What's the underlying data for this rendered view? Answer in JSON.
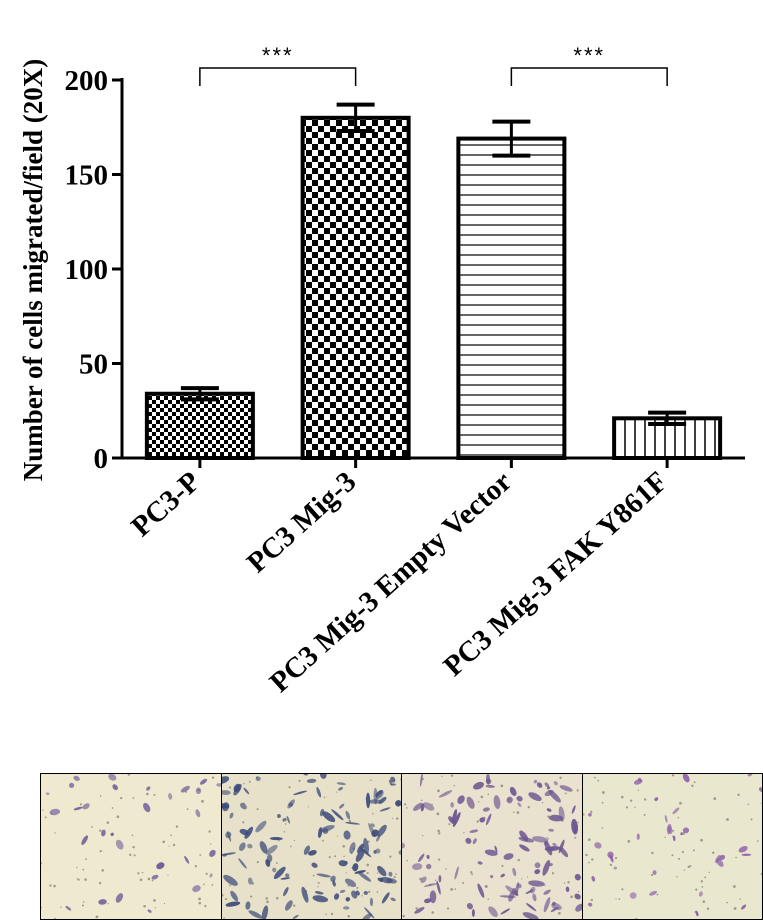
{
  "chart_data": {
    "type": "bar",
    "title": "",
    "xlabel": "",
    "ylabel": "Number of cells migrated/field (20X)",
    "ylim": [
      0,
      200
    ],
    "yticks": [
      "0",
      "50",
      "100",
      "150",
      "200"
    ],
    "categories": [
      "PC3-P",
      "PC3 Mig-3",
      "PC3 Mig-3 Empty Vector",
      "PC3 Mig-3 FAK Y861F"
    ],
    "values": [
      34,
      180,
      169,
      21
    ],
    "errors": [
      3,
      7,
      9,
      3
    ],
    "patterns": [
      "small-checker",
      "large-checker",
      "horizontal-lines",
      "vertical-lines"
    ],
    "significance": [
      {
        "from": 0,
        "to": 1,
        "label": "***"
      },
      {
        "from": 2,
        "to": 3,
        "label": "***"
      }
    ],
    "grid": false,
    "legend": "none"
  },
  "micrographs": [
    {
      "name": "pc3-p",
      "density": 0.18,
      "cell_color": "#6d5a9a",
      "background": "#efe9cf"
    },
    {
      "name": "pc3-mig3",
      "density": 1.0,
      "cell_color": "#3f4c7a",
      "background": "#e7e1c9"
    },
    {
      "name": "pc3-mig3-empty-vector",
      "density": 0.85,
      "cell_color": "#6d5590",
      "background": "#e8e2cf"
    },
    {
      "name": "pc3-mig3-fak-y861f",
      "density": 0.2,
      "cell_color": "#8a5aa8",
      "background": "#e9e8cf"
    }
  ]
}
